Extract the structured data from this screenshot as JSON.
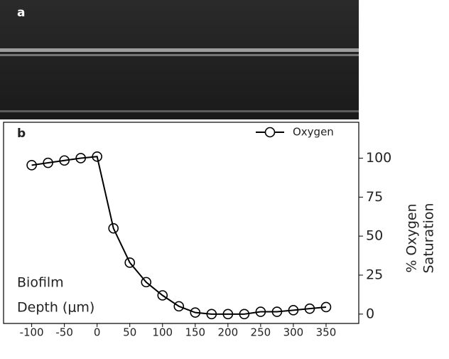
{
  "panels": {
    "a": "a",
    "b": "b"
  },
  "chart_data": {
    "type": "line",
    "y_label": [
      "% Oxygen",
      "Saturation"
    ],
    "annotation": [
      "Biofilm",
      "Depth (μm)"
    ],
    "x": [
      -100,
      -75,
      -50,
      -25,
      0,
      25,
      50,
      75,
      100,
      125,
      150,
      175,
      200,
      225,
      250,
      275,
      300,
      325,
      350
    ],
    "series": [
      {
        "name": "Oxygen",
        "color": "#000000",
        "values": [
          95.5,
          97,
          98.5,
          100,
          101,
          55,
          33,
          20.5,
          12,
          5,
          1,
          0,
          0,
          0,
          1.5,
          1.5,
          2.5,
          3.5,
          4.5
        ]
      }
    ],
    "xlim": [
      -143,
      400
    ],
    "xticks": [
      -100,
      -50,
      0,
      50,
      100,
      150,
      200,
      250,
      300,
      350
    ],
    "ylim": [
      -6,
      123
    ],
    "yticks": [
      0,
      25,
      50,
      75,
      100
    ],
    "y_axis_side": "right",
    "legend": "upper right",
    "grid": false
  }
}
